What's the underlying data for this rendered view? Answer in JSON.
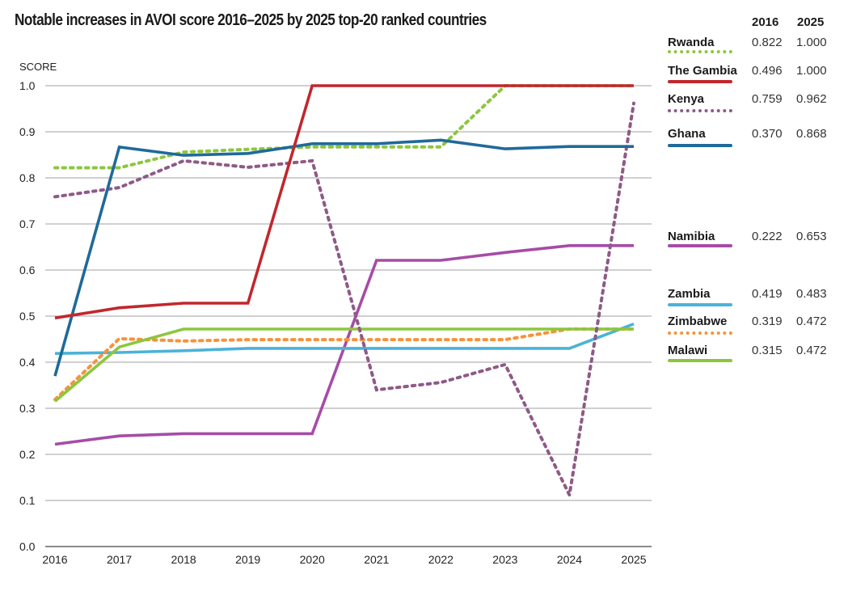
{
  "chart_data": {
    "type": "line",
    "title": "Notable increases in AVOI score 2016–2025 by 2025 top-20 ranked countries",
    "ylabel": "SCORE",
    "xlabel": "",
    "ylim": [
      0.0,
      1.0
    ],
    "yticks": [
      "0.0",
      "0.1",
      "0.2",
      "0.3",
      "0.4",
      "0.5",
      "0.6",
      "0.7",
      "0.8",
      "0.9",
      "1.0"
    ],
    "ytick_values": [
      0.0,
      0.1,
      0.2,
      0.3,
      0.4,
      0.5,
      0.6,
      0.7,
      0.8,
      0.9,
      1.0
    ],
    "grid": true,
    "legend_placement": "right",
    "x": [
      "2016",
      "2017",
      "2018",
      "2019",
      "2020",
      "2021",
      "2022",
      "2023",
      "2024",
      "2025"
    ],
    "legend_headers": [
      "2016",
      "2025"
    ],
    "series": [
      {
        "name": "Rwanda",
        "color": "#8dc63f",
        "dashed": true,
        "v2016": "0.822",
        "v2025": "1.000",
        "values": [
          0.822,
          0.822,
          0.856,
          0.862,
          0.867,
          0.867,
          0.867,
          1.0,
          1.0,
          1.0
        ]
      },
      {
        "name": "The Gambia",
        "color": "#c1272d",
        "dashed": false,
        "v2016": "0.496",
        "v2025": "1.000",
        "values": [
          0.496,
          0.518,
          0.528,
          0.528,
          1.0,
          1.0,
          1.0,
          1.0,
          1.0,
          1.0
        ]
      },
      {
        "name": "Kenya",
        "color": "#8e5a86",
        "dashed": true,
        "v2016": "0.759",
        "v2025": "0.962",
        "values": [
          0.759,
          0.779,
          0.837,
          0.823,
          0.837,
          0.34,
          0.356,
          0.395,
          0.112,
          0.962
        ]
      },
      {
        "name": "Ghana",
        "color": "#1f6a9a",
        "dashed": false,
        "v2016": "0.370",
        "v2025": "0.868",
        "values": [
          0.37,
          0.867,
          0.849,
          0.853,
          0.874,
          0.874,
          0.882,
          0.863,
          0.868,
          0.868
        ]
      },
      {
        "name": "Namibia",
        "color": "#a64ca6",
        "dashed": false,
        "v2016": "0.222",
        "v2025": "0.653",
        "values": [
          0.222,
          0.24,
          0.245,
          0.245,
          0.245,
          0.621,
          0.621,
          0.638,
          0.653,
          0.653
        ]
      },
      {
        "name": "Zambia",
        "color": "#4ab3d8",
        "dashed": false,
        "v2016": "0.419",
        "v2025": "0.483",
        "values": [
          0.419,
          0.421,
          0.425,
          0.43,
          0.43,
          0.43,
          0.43,
          0.43,
          0.43,
          0.483
        ]
      },
      {
        "name": "Zimbabwe",
        "color": "#f7923a",
        "dashed": true,
        "v2016": "0.319",
        "v2025": "0.472",
        "values": [
          0.319,
          0.451,
          0.446,
          0.449,
          0.449,
          0.449,
          0.449,
          0.449,
          0.472,
          0.472
        ]
      },
      {
        "name": "Malawi",
        "color": "#8cc63e",
        "dashed": false,
        "v2016": "0.315",
        "v2025": "0.472",
        "values": [
          0.315,
          0.433,
          0.472,
          0.472,
          0.472,
          0.472,
          0.472,
          0.472,
          0.472,
          0.472
        ]
      }
    ]
  }
}
